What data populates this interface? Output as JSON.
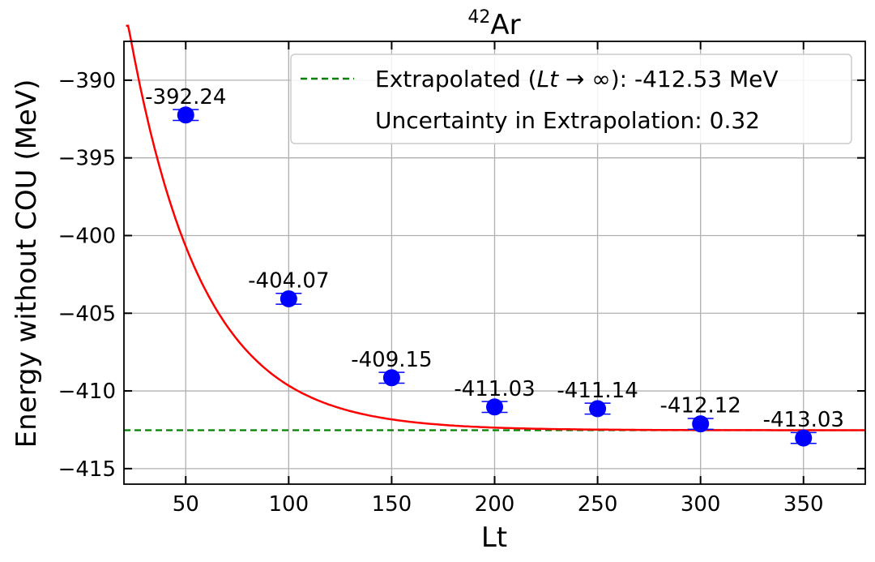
{
  "chart_data": {
    "type": "scatter",
    "title_sup": "42",
    "title_main": "Ar",
    "xlabel": "Lt",
    "ylabel": "Energy without COU (MeV)",
    "xlim": [
      20,
      380
    ],
    "ylim": [
      -416,
      -387.5
    ],
    "x_ticks": [
      50,
      100,
      150,
      200,
      250,
      300,
      350
    ],
    "y_ticks": [
      -390,
      -395,
      -400,
      -405,
      -410,
      -415
    ],
    "y_tick_labels": [
      "−390",
      "−395",
      "−400",
      "−405",
      "−410",
      "−415"
    ],
    "grid": true,
    "series": [
      {
        "name": "data",
        "color": "#0000ff",
        "x": [
          50,
          100,
          150,
          200,
          250,
          300,
          350
        ],
        "y": [
          -392.24,
          -404.07,
          -409.15,
          -411.03,
          -411.14,
          -412.12,
          -413.03
        ],
        "yerr": [
          0.35,
          0.35,
          0.35,
          0.35,
          0.35,
          0.35,
          0.35
        ],
        "labels": [
          "-392.24",
          "-404.07",
          "-409.15",
          "-411.03",
          "-411.14",
          "-412.12",
          "-413.03"
        ]
      }
    ],
    "fit": {
      "color": "#ff0000",
      "asymptote": -412.53,
      "amplitude": 52.4,
      "rate": 0.0283
    },
    "extrapolated": {
      "value": -412.53,
      "color": "#008000"
    },
    "legend": {
      "position": "top-right",
      "line1_prefix": "Extrapolated (",
      "line1_var": "Lt",
      "line1_arrow": " → ∞",
      "line1_suffix": "): -412.53 MeV",
      "line2": "Uncertainty in Extrapolation: 0.32"
    }
  }
}
